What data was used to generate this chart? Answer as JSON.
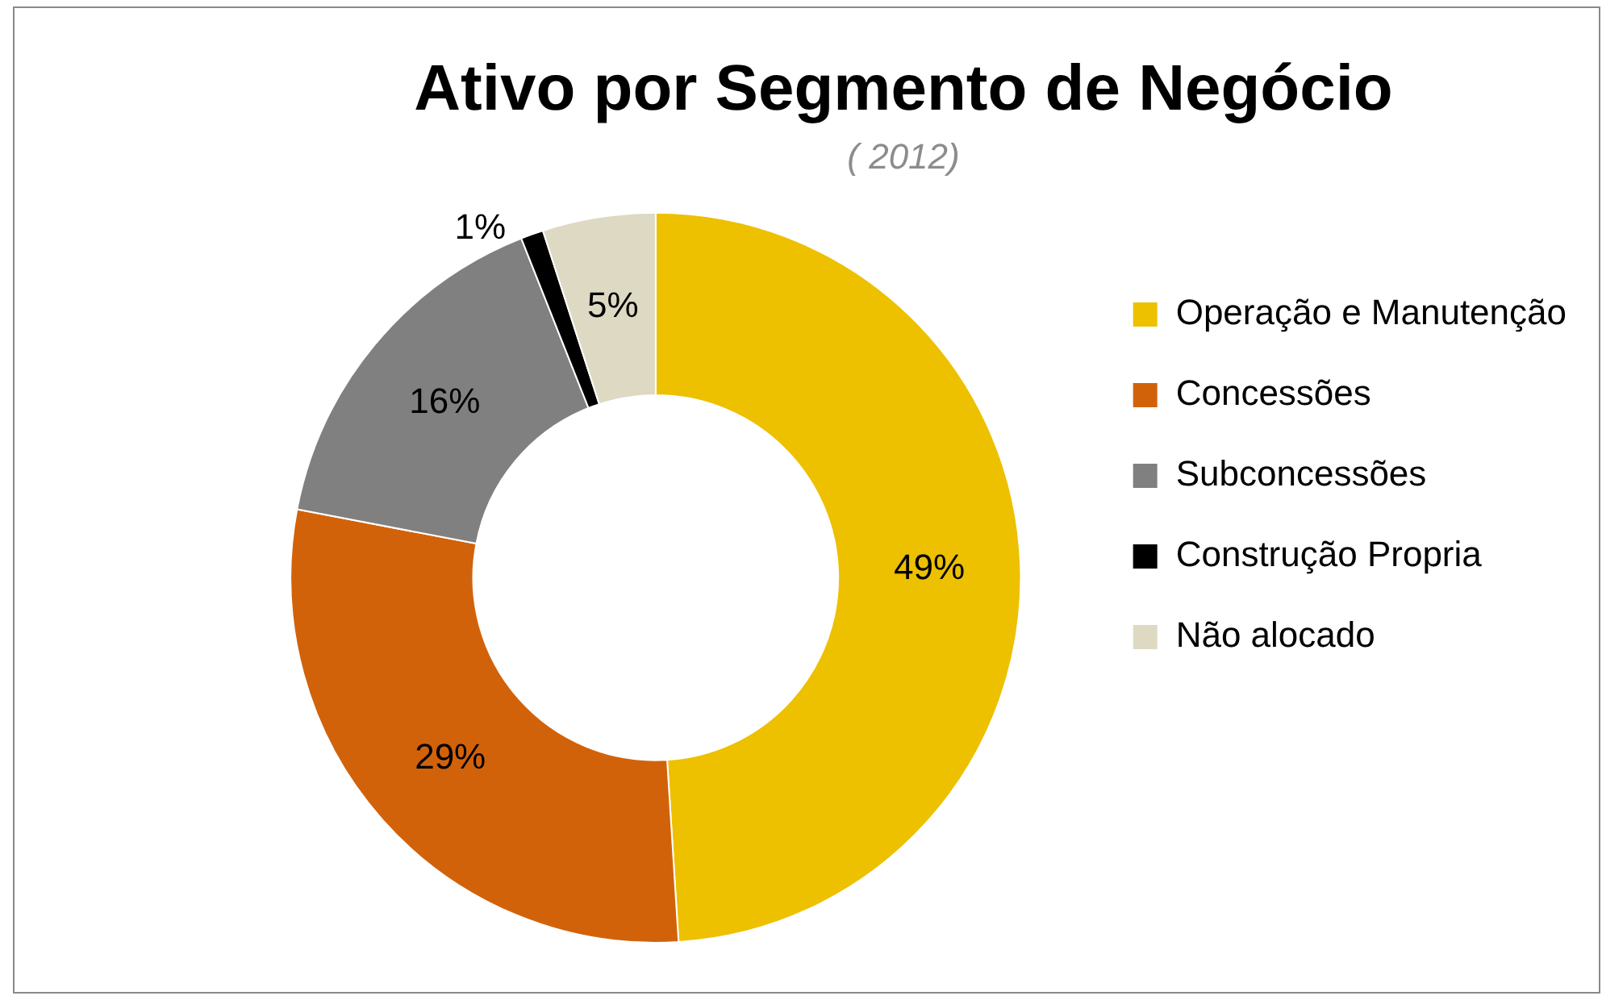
{
  "chart_data": {
    "type": "donut",
    "title": "Ativo por Segmento de Negócio",
    "subtitle": "( 2012)",
    "categories": [
      "Operação e Manutenção",
      "Concessões",
      "Subconcessões",
      "Construção Propria",
      "Não alocado"
    ],
    "values": [
      49,
      29,
      16,
      1,
      5
    ],
    "colors": [
      "#edc000",
      "#d2620a",
      "#808080",
      "#000000",
      "#ddd9c3"
    ],
    "value_labels": [
      "49%",
      "29%",
      "16%",
      "1%",
      "5%"
    ],
    "legend": "right"
  }
}
